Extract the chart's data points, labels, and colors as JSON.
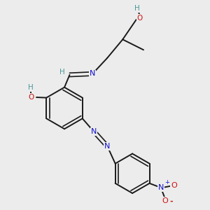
{
  "background_color": "#ececec",
  "bond_color": "#1a1a1a",
  "atom_colors": {
    "C": "#1a1a1a",
    "H": "#4a9898",
    "N": "#1010cc",
    "O": "#cc1010"
  },
  "figsize": [
    3.0,
    3.0
  ],
  "dpi": 100,
  "xlim": [
    0,
    10
  ],
  "ylim": [
    0,
    10
  ]
}
